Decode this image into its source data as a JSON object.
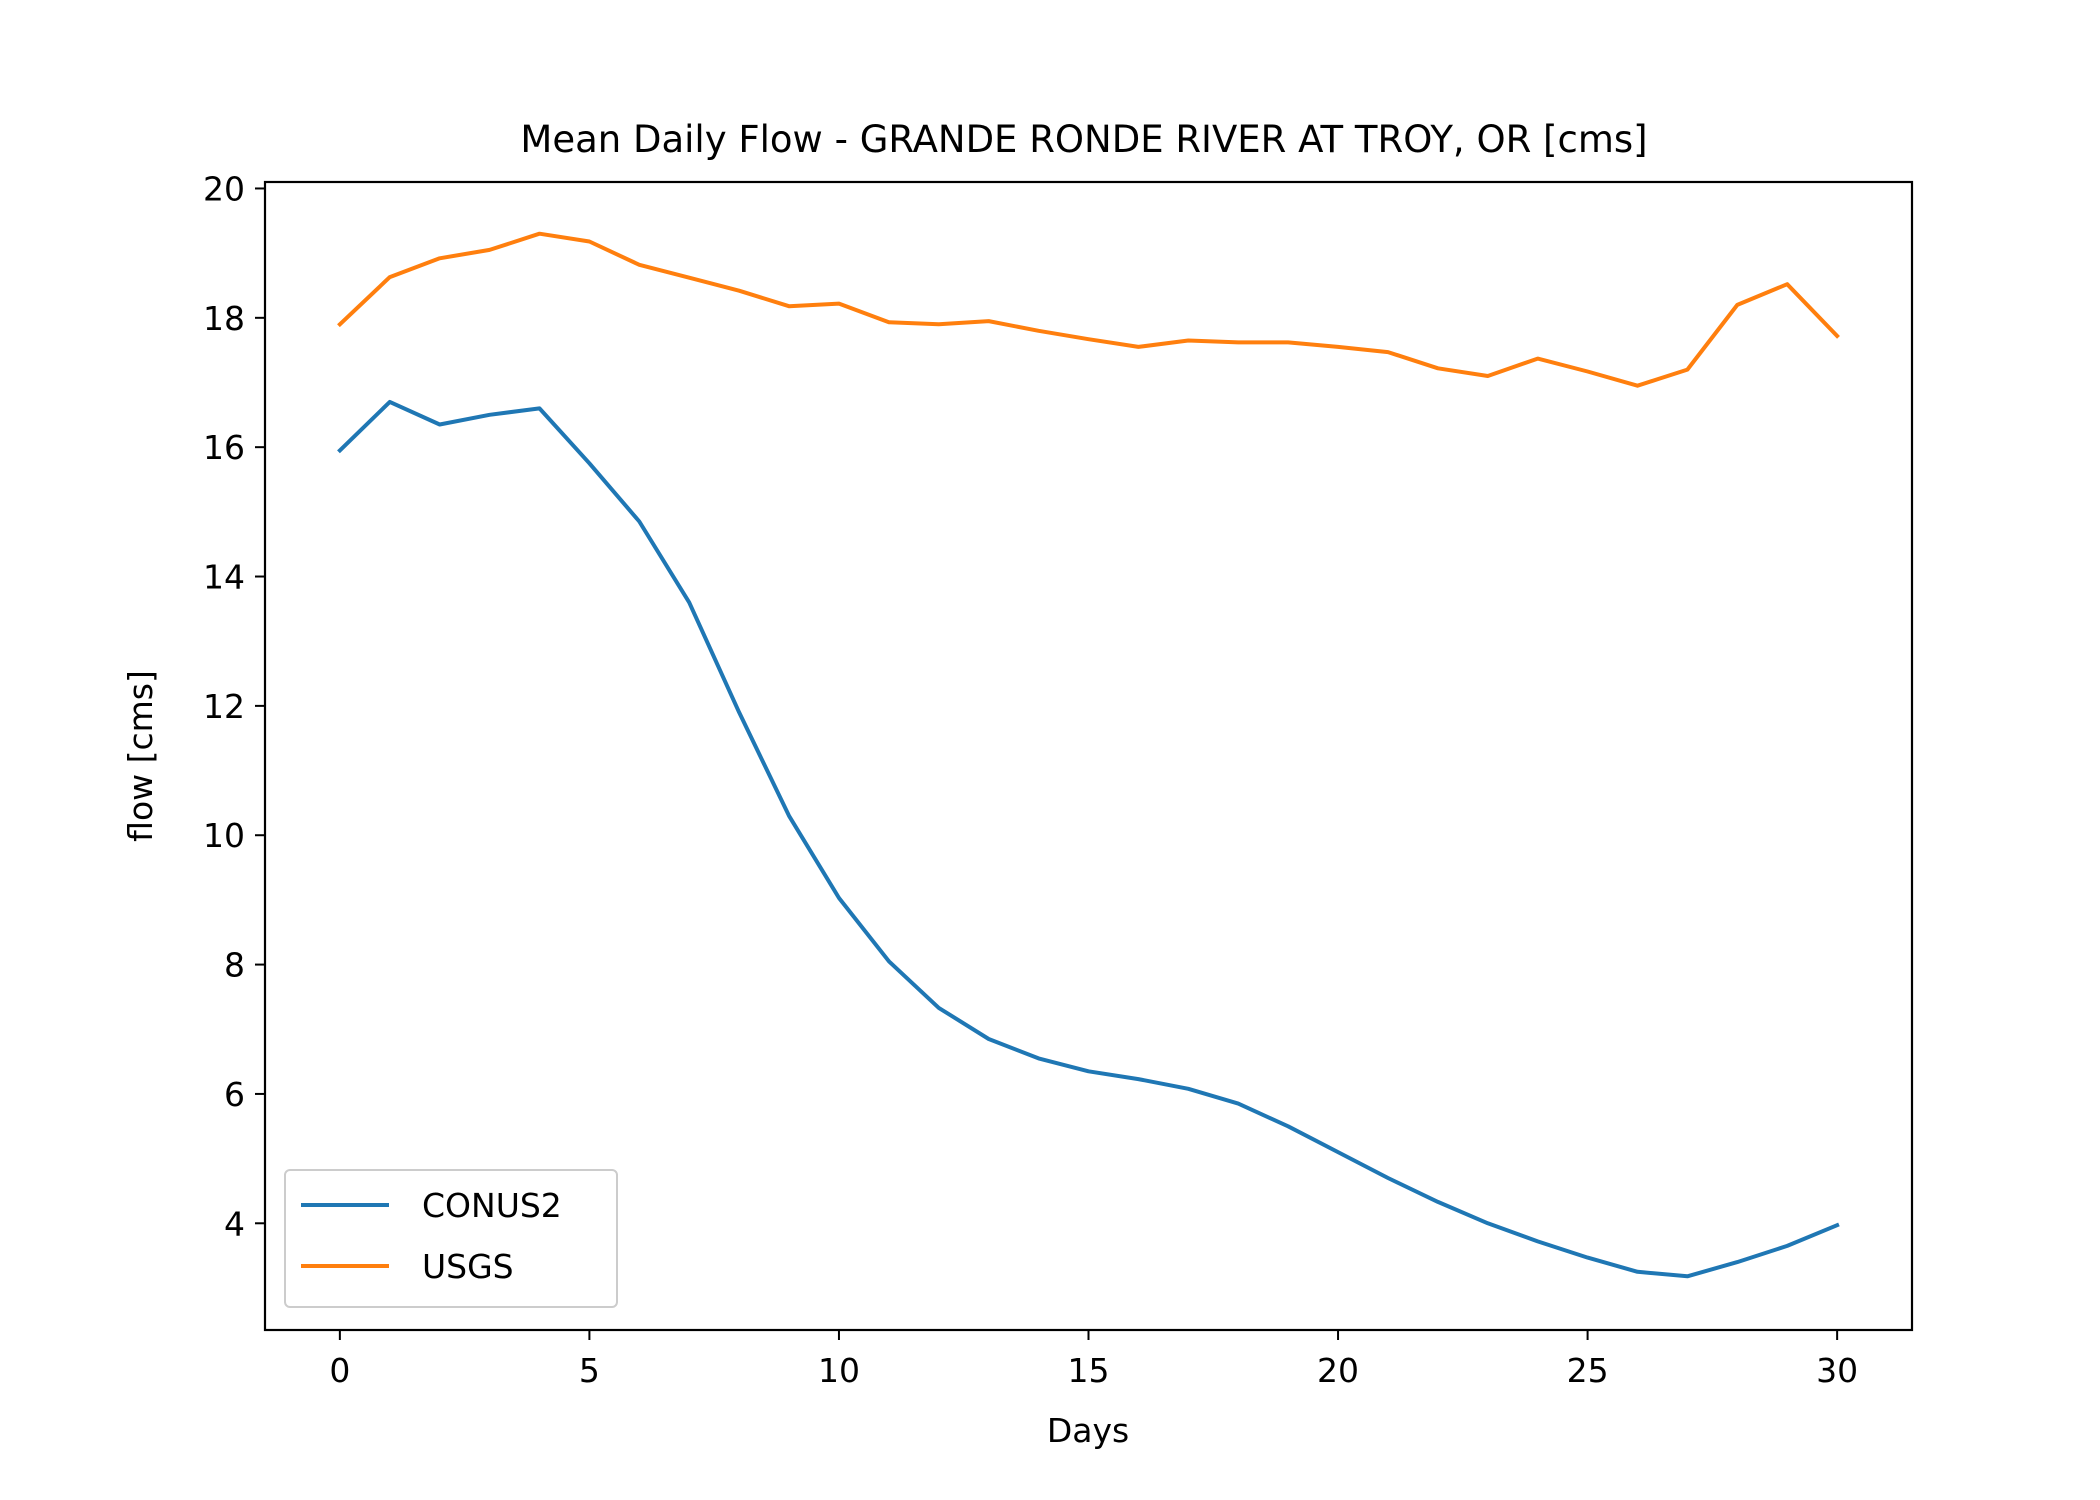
{
  "chart_data": {
    "type": "line",
    "title": "Mean Daily Flow - GRANDE RONDE RIVER AT TROY, OR [cms]",
    "xlabel": "Days",
    "ylabel": "flow [cms]",
    "xlim": [
      -1.5,
      31.5
    ],
    "ylim": [
      2.35,
      20.1
    ],
    "xticks": [
      0,
      5,
      10,
      15,
      20,
      25,
      30
    ],
    "yticks": [
      4,
      6,
      8,
      10,
      12,
      14,
      16,
      18,
      20
    ],
    "grid": false,
    "legend_position": "lower-left",
    "x": [
      0,
      1,
      2,
      3,
      4,
      5,
      6,
      7,
      8,
      9,
      10,
      11,
      12,
      13,
      14,
      15,
      16,
      17,
      18,
      19,
      20,
      21,
      22,
      23,
      24,
      25,
      26,
      27,
      28,
      29,
      30
    ],
    "series": [
      {
        "name": "CONUS2",
        "color": "#1f77b4",
        "values": [
          15.95,
          16.7,
          16.35,
          16.5,
          16.6,
          15.75,
          14.85,
          13.6,
          11.9,
          10.3,
          9.03,
          8.05,
          7.33,
          6.85,
          6.55,
          6.35,
          6.23,
          6.08,
          5.85,
          5.5,
          5.1,
          4.7,
          4.33,
          4.0,
          3.72,
          3.47,
          3.25,
          3.18,
          3.4,
          3.65,
          3.97
        ]
      },
      {
        "name": "USGS",
        "color": "#ff7f0e",
        "values": [
          17.9,
          18.63,
          18.92,
          19.05,
          19.3,
          19.18,
          18.82,
          18.62,
          18.42,
          18.18,
          18.22,
          17.93,
          17.9,
          17.95,
          17.8,
          17.67,
          17.55,
          17.65,
          17.62,
          17.62,
          17.55,
          17.47,
          17.22,
          17.1,
          17.37,
          17.17,
          16.95,
          17.2,
          18.2,
          18.52,
          17.72
        ]
      }
    ]
  }
}
